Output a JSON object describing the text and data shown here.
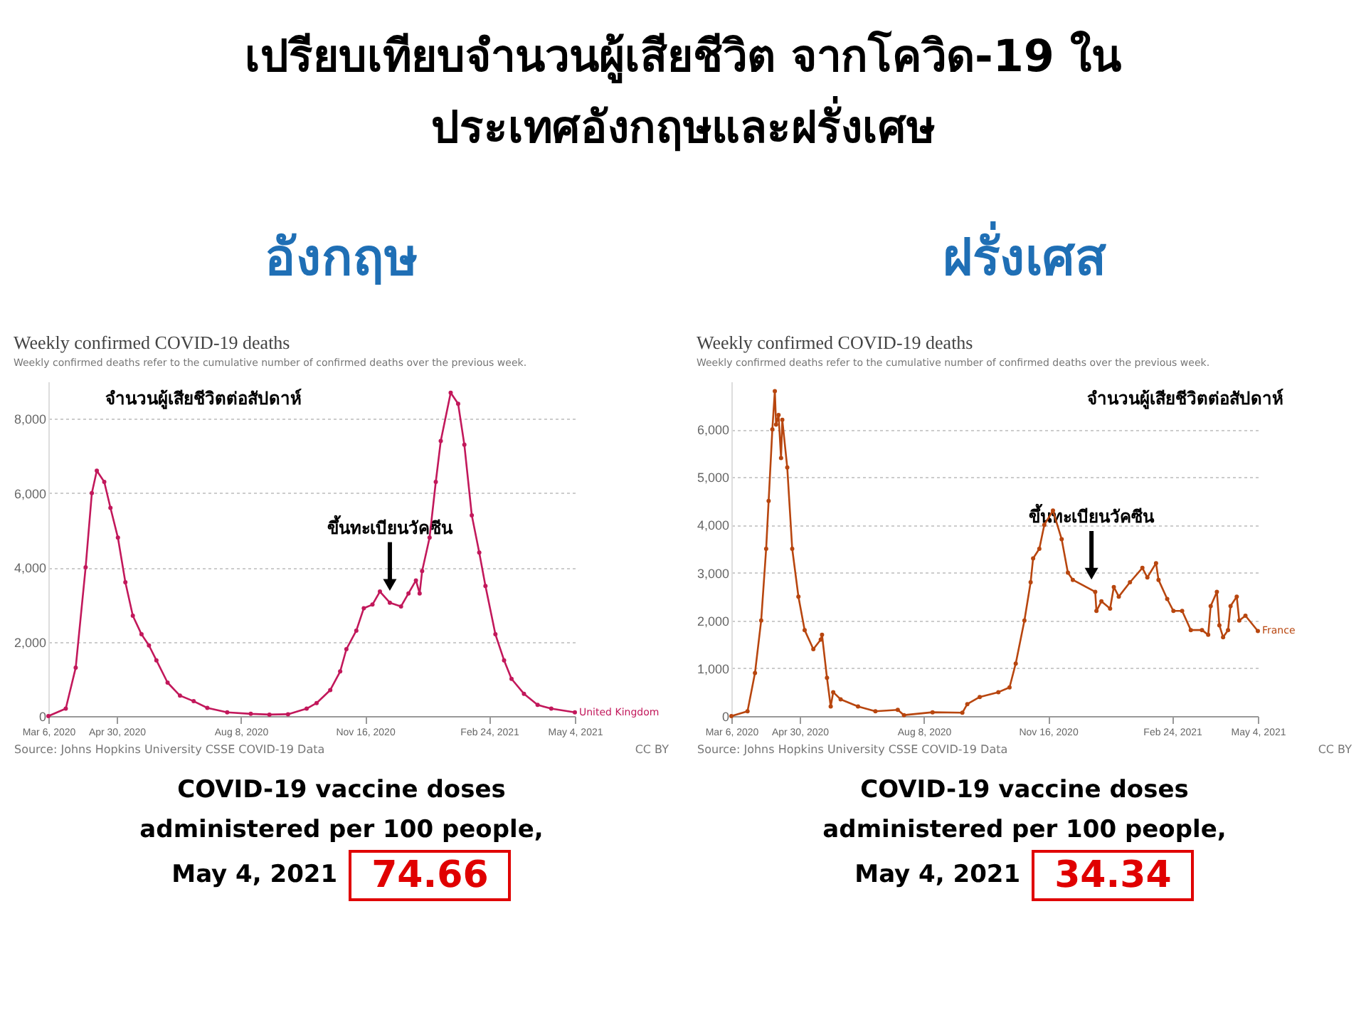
{
  "chart_data": [
    {
      "type": "line",
      "title": "Weekly confirmed COVID-19 deaths",
      "subtitle": "Weekly confirmed deaths refer to the cumulative number of confirmed deaths over the previous week.",
      "annotations": [
        "เปรียบเทียบจำนวนผู้เสียชีวิต จากโควิด-19 ใน ประเทศอังกฤษและฝรั่งเศษ",
        "อังกฤษ",
        "จำนวนผู้เสียชีวิตต่อสัปดาห์",
        {
          "text": "ขึ้นทะเบียนวัคซีน",
          "x": "2020-12-06",
          "y": 3300
        },
        "Source: Johns Hopkins University CSSE COVID-19 Data",
        "CC BY",
        "COVID-19 vaccine doses administered per 100 people, May 4, 2021",
        "74.66"
      ],
      "x": [
        "2020-03-06",
        "2020-03-20",
        "2020-03-28",
        "2020-04-05",
        "2020-04-10",
        "2020-04-14",
        "2020-04-20",
        "2020-04-25",
        "2020-05-01",
        "2020-05-07",
        "2020-05-13",
        "2020-05-20",
        "2020-05-26",
        "2020-06-01",
        "2020-06-10",
        "2020-06-20",
        "2020-07-01",
        "2020-07-12",
        "2020-07-28",
        "2020-08-16",
        "2020-08-31",
        "2020-09-15",
        "2020-09-30",
        "2020-10-08",
        "2020-10-19",
        "2020-10-27",
        "2020-11-01",
        "2020-11-09",
        "2020-11-15",
        "2020-11-22",
        "2020-11-28",
        "2020-12-06",
        "2020-12-15",
        "2020-12-21",
        "2020-12-27",
        "2020-12-30",
        "2021-01-01",
        "2021-01-07",
        "2021-01-12",
        "2021-01-16",
        "2021-01-24",
        "2021-01-30",
        "2021-02-04",
        "2021-02-10",
        "2021-02-16",
        "2021-02-21",
        "2021-03-01",
        "2021-03-08",
        "2021-03-14",
        "2021-03-24",
        "2021-04-04",
        "2021-04-15",
        "2021-05-04"
      ],
      "series": [
        {
          "name": "United Kingdom",
          "color": "#c2185b",
          "values": [
            0,
            200,
            1300,
            4000,
            6000,
            6600,
            6300,
            5600,
            4800,
            3600,
            2700,
            2200,
            1900,
            1500,
            900,
            550,
            400,
            220,
            100,
            60,
            40,
            50,
            200,
            350,
            700,
            1200,
            1800,
            2300,
            2900,
            3000,
            3350,
            3050,
            2950,
            3300,
            3650,
            3300,
            3900,
            4800,
            6300,
            7400,
            8700,
            8400,
            7300,
            5400,
            4400,
            3500,
            2200,
            1500,
            1000,
            600,
            300,
            200,
            100
          ]
        }
      ],
      "xlim": [
        "2020-03-06",
        "2021-05-04"
      ],
      "xticks": [
        {
          "value": "2020-03-06",
          "label": "Mar 6, 2020"
        },
        {
          "value": "2020-04-30",
          "label": "Apr 30, 2020"
        },
        {
          "value": "2020-08-08",
          "label": "Aug 8, 2020"
        },
        {
          "value": "2020-11-16",
          "label": "Nov 16, 2020"
        },
        {
          "value": "2021-02-24",
          "label": "Feb 24, 2021"
        },
        {
          "value": "2021-05-04",
          "label": "May 4, 2021"
        }
      ],
      "ylim": [
        0,
        9000
      ],
      "yticks": [
        0,
        {
          "value": 2000,
          "label": "2,000"
        },
        {
          "value": 4000,
          "label": "4,000"
        },
        {
          "value": 6000,
          "label": "6,000"
        },
        {
          "value": 8000,
          "label": "8,000"
        }
      ],
      "grid": "y",
      "legend": false,
      "marker": "circle",
      "line_style": "solid"
    },
    {
      "type": "line",
      "title": "Weekly confirmed COVID-19 deaths",
      "subtitle": "Weekly confirmed deaths refer to the cumulative number of confirmed deaths over the previous week.",
      "annotations": [
        "ฝรั่งเศส",
        "จำนวนผู้เสียชีวิตต่อสัปดาห์",
        {
          "text": "ขึ้นทะเบียนวัคซีน",
          "x": "2020-12-21",
          "y": 2800
        },
        "Source: Johns Hopkins University CSSE COVID-19 Data",
        "CC BY",
        "COVID-19 vaccine doses administered per 100 people, May 4, 2021",
        "34.34"
      ],
      "x": [
        "2020-03-06",
        "2020-03-19",
        "2020-03-25",
        "2020-03-30",
        "2020-04-03",
        "2020-04-05",
        "2020-04-08",
        "2020-04-10",
        "2020-04-11",
        "2020-04-13",
        "2020-04-15",
        "2020-04-16",
        "2020-04-20",
        "2020-04-24",
        "2020-04-29",
        "2020-05-04",
        "2020-05-11",
        "2020-05-17",
        "2020-05-18",
        "2020-05-22",
        "2020-05-25",
        "2020-05-27",
        "2020-06-02",
        "2020-06-16",
        "2020-06-30",
        "2020-07-18",
        "2020-07-23",
        "2020-08-15",
        "2020-09-08",
        "2020-09-12",
        "2020-09-22",
        "2020-10-07",
        "2020-10-16",
        "2020-10-21",
        "2020-10-28",
        "2020-11-02",
        "2020-11-04",
        "2020-11-09",
        "2020-11-13",
        "2020-11-20",
        "2020-11-27",
        "2020-12-02",
        "2020-12-06",
        "2020-12-24",
        "2020-12-25",
        "2020-12-29",
        "2021-01-05",
        "2021-01-08",
        "2021-01-12",
        "2021-01-21",
        "2021-01-31",
        "2021-02-04",
        "2021-02-11",
        "2021-02-13",
        "2021-02-20",
        "2021-02-25",
        "2021-03-04",
        "2021-03-11",
        "2021-03-20",
        "2021-03-25",
        "2021-03-27",
        "2021-04-01",
        "2021-04-03",
        "2021-04-06",
        "2021-04-10",
        "2021-04-12",
        "2021-04-17",
        "2021-04-19",
        "2021-04-24",
        "2021-05-04"
      ],
      "series": [
        {
          "name": "France",
          "color": "#b8460f",
          "values": [
            0,
            100,
            900,
            2000,
            3500,
            4500,
            6000,
            6800,
            6100,
            6300,
            5400,
            6200,
            5200,
            3500,
            2500,
            1800,
            1400,
            1600,
            1700,
            800,
            200,
            500,
            350,
            200,
            100,
            130,
            20,
            80,
            70,
            250,
            400,
            500,
            600,
            1100,
            2000,
            2800,
            3300,
            3500,
            4000,
            4300,
            3700,
            3000,
            2850,
            2600,
            2200,
            2400,
            2250,
            2700,
            2500,
            2800,
            3100,
            2900,
            3200,
            2850,
            2450,
            2200,
            2200,
            1800,
            1800,
            1700,
            2300,
            2600,
            1900,
            1650,
            1800,
            2300,
            2500,
            2000,
            2100,
            1780
          ]
        }
      ],
      "xlim": [
        "2020-03-06",
        "2021-05-04"
      ],
      "xticks": [
        {
          "value": "2020-03-06",
          "label": "Mar 6, 2020"
        },
        {
          "value": "2020-04-30",
          "label": "Apr 30, 2020"
        },
        {
          "value": "2020-08-08",
          "label": "Aug 8, 2020"
        },
        {
          "value": "2020-11-16",
          "label": "Nov 16, 2020"
        },
        {
          "value": "2021-02-24",
          "label": "Feb 24, 2021"
        },
        {
          "value": "2021-05-04",
          "label": "May 4, 2021"
        }
      ],
      "ylim": [
        0,
        7000
      ],
      "yticks": [
        0,
        {
          "value": 1000,
          "label": "1,000"
        },
        {
          "value": 2000,
          "label": "2,000"
        },
        {
          "value": 3000,
          "label": "3,000"
        },
        {
          "value": 4000,
          "label": "4,000"
        },
        {
          "value": 5000,
          "label": "5,000"
        },
        {
          "value": 6000,
          "label": "6,000"
        }
      ],
      "grid": "y",
      "legend": false,
      "marker": "circle",
      "line_style": "solid"
    }
  ]
}
